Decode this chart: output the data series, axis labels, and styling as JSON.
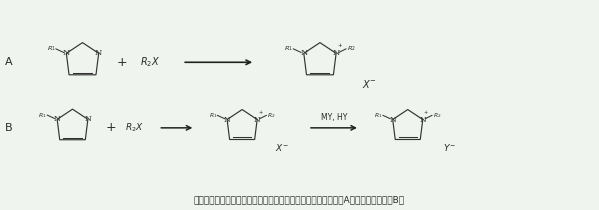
{
  "bg_color": "#eff4ef",
  "text_color": "#2a2a2a",
  "line_color": "#333333",
  "title_text": "离子液体的合成方法（以咪唑类离子液体为例）：直接合成法（A）和两步合成法（B）",
  "label_A": "A",
  "label_B": "B",
  "arrow_color": "#222222",
  "MY_HY": "MY, HY"
}
